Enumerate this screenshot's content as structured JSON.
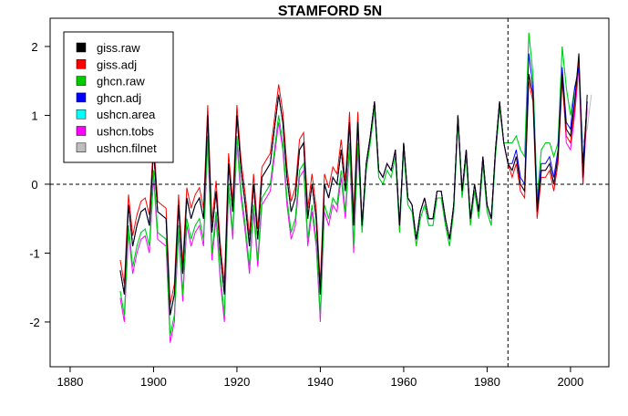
{
  "chart_data": {
    "type": "line",
    "title": "STAMFORD 5N",
    "xlabel": "",
    "ylabel": "",
    "xlim": [
      1875.2,
      2009.2
    ],
    "ylim": [
      -2.65,
      2.41
    ],
    "xticks": [
      1880,
      1900,
      1920,
      1940,
      1960,
      1980,
      2000
    ],
    "yticks": [
      -2,
      -1,
      0,
      1,
      2
    ],
    "ytick_labels": [
      "-2",
      "-1",
      "0",
      "1",
      "2"
    ],
    "hline": 0,
    "vline": 1985,
    "grid": false,
    "legend_position": "top-left",
    "x_start": 1892,
    "series": [
      {
        "name": "giss.raw",
        "color": "#000000",
        "values": [
          -1.25,
          -1.6,
          -0.3,
          -0.9,
          -0.6,
          -0.4,
          -0.35,
          -0.6,
          0.5,
          -0.4,
          -0.45,
          -0.5,
          -1.9,
          -1.6,
          -0.3,
          -1.3,
          -0.2,
          -0.5,
          -0.3,
          -0.2,
          -0.5,
          1.0,
          -0.7,
          -0.1,
          -1.0,
          -1.6,
          0.3,
          -0.4,
          1.0,
          0.2,
          -0.3,
          -0.9,
          0.0,
          -0.8,
          0.1,
          0.2,
          0.3,
          0.8,
          1.3,
          0.9,
          0.1,
          -0.4,
          -0.2,
          0.5,
          0.6,
          -0.5,
          0.0,
          -0.5,
          -1.6,
          0.0,
          -0.2,
          0.1,
          0.0,
          0.5,
          -0.1,
          0.9,
          -0.6,
          0.9,
          -0.6,
          0.3,
          0.7,
          1.2,
          0.2,
          0.1,
          0.3,
          0.2,
          0.5,
          -0.6,
          0.6,
          -0.2,
          -0.3,
          -0.8,
          -0.4,
          -0.2,
          -0.5,
          -0.5,
          -0.1,
          -0.1,
          -0.5,
          -0.8,
          -0.3,
          1.0,
          -0.1,
          0.5,
          -0.5,
          0.0,
          -0.4,
          0.4,
          -0.3,
          -0.5,
          0.5,
          1.2,
          0.6,
          0.3,
          0.2,
          0.4,
          0.0,
          -0.1,
          1.6,
          1.3,
          -0.4,
          0.2,
          0.2,
          0.3,
          0.0,
          0.4,
          1.6,
          0.8,
          0.7,
          1.2,
          1.9,
          0.1,
          1.3
        ]
      },
      {
        "name": "giss.adj",
        "color": "#FF0000",
        "values": [
          -1.1,
          -1.45,
          -0.15,
          -0.75,
          -0.45,
          -0.25,
          -0.2,
          -0.45,
          0.65,
          -0.25,
          -0.3,
          -0.35,
          -1.75,
          -1.45,
          -0.15,
          -1.15,
          -0.05,
          -0.35,
          -0.15,
          -0.05,
          -0.35,
          1.15,
          -0.55,
          0.05,
          -0.85,
          -1.45,
          0.45,
          -0.25,
          1.15,
          0.35,
          -0.15,
          -0.75,
          0.15,
          -0.65,
          0.25,
          0.35,
          0.45,
          0.95,
          1.45,
          1.05,
          0.25,
          -0.25,
          -0.05,
          0.65,
          0.75,
          -0.35,
          0.15,
          -0.35,
          -1.45,
          0.15,
          -0.05,
          0.25,
          0.15,
          0.65,
          0.05,
          1.05,
          -0.45,
          1.05,
          -0.6,
          0.3,
          0.7,
          1.2,
          0.2,
          0.1,
          0.3,
          0.2,
          0.5,
          -0.6,
          0.6,
          -0.2,
          -0.3,
          -0.8,
          -0.4,
          -0.2,
          -0.5,
          -0.5,
          -0.1,
          -0.1,
          -0.5,
          -0.8,
          -0.3,
          1.0,
          -0.1,
          0.5,
          -0.5,
          0.0,
          -0.4,
          0.4,
          -0.3,
          -0.5,
          0.5,
          1.2,
          0.6,
          0.3,
          0.1,
          0.3,
          -0.1,
          -0.2,
          1.5,
          1.2,
          -0.5,
          0.1,
          0.1,
          0.2,
          -0.1,
          0.3,
          1.5,
          0.7,
          0.6,
          1.1,
          1.8,
          0.0,
          1.2
        ]
      },
      {
        "name": "ghcn.raw",
        "color": "#00CC00",
        "values": [
          -1.55,
          -1.9,
          -0.6,
          -1.2,
          -0.9,
          -0.7,
          -0.65,
          -0.9,
          0.2,
          -0.7,
          -0.75,
          -0.8,
          -2.2,
          -1.9,
          -0.6,
          -1.6,
          -0.5,
          -0.8,
          -0.6,
          -0.5,
          -0.8,
          0.7,
          -1.0,
          -0.4,
          -1.3,
          -1.9,
          0.0,
          -0.7,
          0.7,
          -0.1,
          -0.6,
          -1.2,
          -0.3,
          -1.1,
          -0.2,
          -0.1,
          0.0,
          0.5,
          1.0,
          0.6,
          -0.2,
          -0.7,
          -0.5,
          0.2,
          0.3,
          -0.8,
          -0.3,
          -0.8,
          -1.9,
          -0.3,
          -0.5,
          -0.2,
          -0.3,
          0.2,
          -0.4,
          0.6,
          -0.9,
          0.6,
          -0.7,
          0.2,
          0.6,
          1.1,
          0.1,
          0.0,
          0.2,
          0.1,
          0.4,
          -0.7,
          0.5,
          -0.3,
          -0.4,
          -0.9,
          -0.5,
          -0.3,
          -0.6,
          -0.6,
          -0.2,
          -0.2,
          -0.6,
          -0.9,
          -0.4,
          0.9,
          -0.2,
          0.4,
          -0.6,
          -0.1,
          -0.5,
          0.3,
          -0.4,
          -0.6,
          0.4,
          1.1,
          0.6,
          0.6,
          0.6,
          0.7,
          0.5,
          0.4,
          2.2,
          1.6,
          -0.2,
          0.5,
          0.6,
          0.6,
          0.4,
          0.6,
          2.0,
          1.4,
          1.0,
          1.4,
          1.7,
          0.3,
          1.2
        ]
      },
      {
        "name": "ghcn.adj",
        "color": "#0000FF",
        "values": [
          -1.25,
          -1.6,
          -0.3,
          -0.9,
          -0.6,
          -0.4,
          -0.35,
          -0.6,
          0.5,
          -0.4,
          -0.45,
          -0.5,
          -1.9,
          -1.6,
          -0.3,
          -1.3,
          -0.2,
          -0.5,
          -0.3,
          -0.2,
          -0.5,
          1.0,
          -0.7,
          -0.1,
          -1.0,
          -1.6,
          0.3,
          -0.4,
          1.0,
          0.2,
          -0.3,
          -0.9,
          0.0,
          -0.8,
          0.1,
          0.2,
          0.3,
          0.8,
          1.3,
          0.9,
          0.1,
          -0.4,
          -0.2,
          0.5,
          0.6,
          -0.5,
          0.0,
          -0.5,
          -1.6,
          0.0,
          -0.2,
          0.1,
          0.0,
          0.5,
          -0.1,
          0.9,
          -0.6,
          0.9,
          -0.6,
          0.3,
          0.7,
          1.2,
          0.2,
          0.1,
          0.3,
          0.2,
          0.5,
          -0.6,
          0.6,
          -0.2,
          -0.3,
          -0.8,
          -0.4,
          -0.2,
          -0.5,
          -0.5,
          -0.1,
          -0.1,
          -0.5,
          -0.8,
          -0.3,
          1.0,
          -0.1,
          0.5,
          -0.5,
          0.0,
          -0.4,
          0.4,
          -0.3,
          -0.5,
          0.5,
          1.2,
          0.6,
          0.3,
          0.3,
          0.5,
          0.1,
          0.0,
          1.9,
          1.4,
          -0.3,
          0.3,
          0.3,
          0.4,
          0.1,
          0.5,
          1.7,
          0.9,
          0.8,
          1.4,
          1.7,
          0.3,
          1.2
        ]
      },
      {
        "name": "ushcn.area",
        "color": "#00FFFF",
        "values": [
          -1.55,
          -1.9,
          -0.6,
          -1.2,
          -0.9,
          -0.7,
          -0.65,
          -0.9,
          0.2,
          -0.7,
          -0.75,
          -0.8,
          -2.2,
          -1.9,
          -0.6,
          -1.6,
          -0.5,
          -0.8,
          -0.6,
          -0.5,
          -0.8,
          0.7,
          -1.0,
          -0.4,
          -1.3,
          -1.9,
          0.0,
          -0.7,
          0.7,
          -0.1,
          -0.6,
          -1.2,
          -0.3,
          -1.1,
          -0.2,
          -0.1,
          0.0,
          0.5,
          1.0,
          0.6,
          -0.2,
          -0.7,
          -0.5,
          0.2,
          0.3,
          -0.8,
          -0.3,
          -0.8,
          -1.9,
          -0.3,
          -0.5,
          -0.2,
          -0.3,
          0.2,
          -0.4,
          0.6,
          -0.9,
          0.6,
          -0.7,
          0.2,
          0.6,
          1.1,
          0.1,
          0.0,
          0.2,
          0.1,
          0.4,
          -0.7,
          0.5,
          -0.3,
          -0.4,
          -0.9,
          -0.5,
          -0.3,
          -0.6,
          -0.6,
          -0.2,
          -0.2,
          -0.6,
          -0.9,
          -0.4,
          0.9,
          -0.2,
          0.4,
          -0.6,
          -0.1,
          -0.5,
          0.3,
          -0.4,
          -0.6,
          0.4,
          1.1,
          0.6,
          0.6,
          0.6,
          0.7,
          0.5,
          0.4,
          2.2,
          1.6,
          -0.2,
          0.5,
          0.6,
          0.6,
          0.4,
          0.6,
          2.0,
          1.4,
          1.0,
          1.4,
          1.7,
          0.3,
          1.2
        ]
      },
      {
        "name": "ushcn.tobs",
        "color": "#FF00FF",
        "values": [
          -1.65,
          -2.0,
          -0.7,
          -1.3,
          -1.0,
          -0.8,
          -0.75,
          -1.0,
          0.1,
          -0.8,
          -0.85,
          -0.9,
          -2.3,
          -2.0,
          -0.7,
          -1.7,
          -0.6,
          -0.9,
          -0.7,
          -0.6,
          -0.9,
          0.6,
          -1.1,
          -0.5,
          -1.4,
          -2.0,
          -0.1,
          -0.8,
          0.6,
          -0.2,
          -0.7,
          -1.3,
          -0.4,
          -1.2,
          -0.3,
          -0.2,
          -0.1,
          0.4,
          0.9,
          0.5,
          -0.3,
          -0.8,
          -0.6,
          0.1,
          0.2,
          -0.9,
          -0.4,
          -0.9,
          -2.0,
          -0.4,
          -0.6,
          -0.3,
          -0.4,
          0.1,
          -0.5,
          0.5,
          -1.0,
          0.5,
          -0.6,
          0.2,
          0.7,
          1.2,
          0.2,
          0.1,
          0.3,
          0.2,
          0.5,
          -0.6,
          0.6,
          -0.2,
          -0.3,
          -0.8,
          -0.4,
          -0.2,
          -0.5,
          -0.5,
          -0.1,
          -0.1,
          -0.5,
          -0.8,
          -0.3,
          1.0,
          -0.1,
          0.5,
          -0.5,
          0.0,
          -0.4,
          0.4,
          -0.3,
          -0.5,
          0.5,
          1.2,
          0.6,
          0.3,
          0.2,
          0.4,
          0.0,
          -0.1,
          1.6,
          1.3,
          -0.4,
          0.2,
          0.2,
          0.3,
          0.0,
          0.4,
          1.6,
          0.6,
          0.5,
          1.0,
          1.7,
          0.0,
          1.1
        ]
      },
      {
        "name": "ushcn.filnet",
        "color": "#BEBEBE",
        "values": [
          -1.25,
          -1.6,
          -0.3,
          -0.9,
          -0.6,
          -0.4,
          -0.35,
          -0.6,
          0.5,
          -0.4,
          -0.45,
          -0.5,
          -1.9,
          -1.6,
          -0.3,
          -1.3,
          -0.2,
          -0.5,
          -0.3,
          -0.2,
          -0.5,
          1.0,
          -0.7,
          -0.1,
          -1.0,
          -1.6,
          0.3,
          -0.4,
          1.0,
          0.2,
          -0.3,
          -0.9,
          0.0,
          -0.8,
          0.1,
          0.2,
          0.3,
          0.8,
          1.3,
          0.9,
          0.1,
          -0.4,
          -0.2,
          0.5,
          0.6,
          -0.5,
          0.0,
          -0.5,
          -1.6,
          0.0,
          -0.2,
          0.1,
          0.0,
          0.5,
          -0.1,
          0.9,
          -0.6,
          0.9,
          -0.6,
          0.3,
          0.7,
          1.2,
          0.2,
          0.1,
          0.3,
          0.2,
          0.5,
          -0.6,
          0.6,
          -0.2,
          -0.3,
          -0.8,
          -0.4,
          -0.2,
          -0.5,
          -0.5,
          -0.1,
          -0.1,
          -0.5,
          -0.8,
          -0.3,
          1.0,
          -0.1,
          0.5,
          -0.5,
          0.0,
          -0.4,
          0.4,
          -0.3,
          -0.5,
          0.5,
          1.2,
          0.6,
          0.3,
          0.2,
          0.4,
          0.0,
          -0.1,
          1.6,
          1.3,
          -0.4,
          0.2,
          0.2,
          0.3,
          0.0,
          0.4,
          1.6,
          0.8,
          0.7,
          1.2,
          1.9,
          0.6,
          0.8,
          1.3
        ]
      }
    ]
  }
}
